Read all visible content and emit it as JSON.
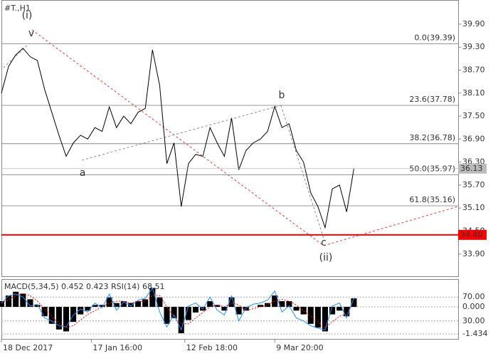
{
  "chart_data": [
    {
      "type": "line",
      "title": "#T.,H1",
      "x": [
        0,
        2,
        4,
        6,
        8,
        10,
        12,
        14,
        16,
        18,
        20,
        22,
        24,
        26,
        28,
        30,
        32,
        34,
        36,
        38,
        40,
        42,
        44,
        46,
        48,
        50,
        52,
        54,
        56,
        58,
        60,
        62,
        64,
        66,
        68,
        70,
        72,
        74,
        76,
        78,
        80,
        82,
        84,
        86,
        88,
        90,
        92,
        94,
        96,
        98
      ],
      "series": [
        {
          "color": "#000000",
          "values": [
            38.1,
            38.8,
            39.1,
            39.27,
            39.05,
            38.95,
            38.2,
            37.6,
            37.0,
            36.45,
            36.8,
            37.0,
            36.9,
            37.2,
            37.1,
            37.74,
            37.2,
            37.5,
            37.3,
            37.6,
            37.7,
            39.23,
            38.3,
            36.26,
            36.8,
            35.14,
            36.26,
            36.5,
            36.45,
            37.2,
            36.8,
            36.45,
            37.45,
            36.1,
            36.6,
            36.8,
            36.9,
            37.1,
            37.75,
            37.2,
            37.3,
            36.6,
            36.3,
            35.5,
            35.14,
            34.59,
            35.6,
            35.7,
            35.0,
            36.13
          ]
        }
      ],
      "xlim": [
        0,
        127
      ],
      "ylim": [
        33.32,
        40.53
      ],
      "xticks": [
        {
          "value": 0,
          "label": "18 Dec 2017"
        },
        {
          "value": 25,
          "label": "17 Jan 16:00"
        },
        {
          "value": 51,
          "label": "12 Feb 18:00"
        },
        {
          "value": 76,
          "label": "9 Mar 20:00"
        }
      ],
      "yticks": [
        {
          "value": 39.9,
          "label": "39.90"
        },
        {
          "value": 39.3,
          "label": "39.30"
        },
        {
          "value": 38.7,
          "label": "38.70"
        },
        {
          "value": 38.1,
          "label": "38.10"
        },
        {
          "value": 37.5,
          "label": "37.50"
        },
        {
          "value": 36.9,
          "label": "36.90"
        },
        {
          "value": 36.3,
          "label": "36.30"
        },
        {
          "value": 35.7,
          "label": "35.70"
        },
        {
          "value": 35.1,
          "label": "35.10"
        },
        {
          "value": 34.5,
          "label": "34.50"
        },
        {
          "value": 33.9,
          "label": "33.90"
        }
      ],
      "levels": [
        {
          "value": 39.39,
          "label": "0.0(39.39)"
        },
        {
          "value": 37.78,
          "label": "23.6(37.78)"
        },
        {
          "value": 36.78,
          "label": "38.2(36.78)"
        },
        {
          "value": 35.97,
          "label": "50.0(35.97)"
        },
        {
          "value": 35.16,
          "label": "61.8(35.16)"
        }
      ],
      "lines": [
        {
          "value": 36.13,
          "label": "36.13",
          "color": "#bbbbbb"
        },
        {
          "value": 34.4,
          "label": "34.40",
          "color": "#ff0000"
        }
      ],
      "wave_labels": [
        "(i)",
        "v",
        "a",
        "b",
        "c",
        "(ii)"
      ]
    },
    {
      "type": "bar",
      "title": "MACD(5,34,5) 0.452 0.423 RSI(14) 68.51",
      "x": [
        0,
        2,
        4,
        6,
        8,
        10,
        12,
        14,
        16,
        18,
        20,
        22,
        24,
        26,
        28,
        30,
        32,
        34,
        36,
        38,
        40,
        42,
        44,
        46,
        48,
        50,
        52,
        54,
        56,
        58,
        60,
        62,
        64,
        66,
        68,
        70,
        72,
        74,
        76,
        78,
        80,
        82,
        84,
        86,
        88,
        90,
        92,
        94,
        96,
        98
      ],
      "series": [
        {
          "color": "#000000",
          "values": [
            0.3,
            0.6,
            0.8,
            0.7,
            0.4,
            0.1,
            -0.5,
            -0.9,
            -1.2,
            -1.3,
            -0.8,
            -0.4,
            -0.2,
            0.1,
            0.1,
            0.5,
            0.2,
            0.3,
            0.2,
            0.3,
            0.4,
            1.0,
            0.5,
            -0.9,
            -0.6,
            -1.4,
            -0.7,
            -0.3,
            -0.2,
            0.3,
            0.1,
            -0.2,
            0.5,
            -0.4,
            -0.2,
            0.0,
            0.1,
            0.2,
            0.6,
            0.3,
            0.3,
            -0.2,
            -0.4,
            -0.9,
            -1.1,
            -1.3,
            -0.4,
            -0.2,
            -0.5,
            0.45
          ]
        },
        {
          "color": "#ff0000",
          "type": "line",
          "values": [
            0.2,
            0.4,
            0.6,
            0.7,
            0.6,
            0.3,
            -0.1,
            -0.5,
            -0.9,
            -1.1,
            -1.0,
            -0.7,
            -0.4,
            -0.2,
            0.0,
            0.2,
            0.3,
            0.3,
            0.2,
            0.3,
            0.3,
            0.6,
            0.6,
            0.0,
            -0.5,
            -0.9,
            -0.9,
            -0.6,
            -0.3,
            0.0,
            0.1,
            0.0,
            0.2,
            0.1,
            -0.2,
            -0.1,
            0.0,
            0.1,
            0.3,
            0.4,
            0.3,
            0.1,
            -0.2,
            -0.5,
            -0.8,
            -1.1,
            -0.8,
            -0.5,
            -0.4,
            0.42
          ]
        },
        {
          "color": "#1e90ff",
          "type": "line",
          "axis": "y2",
          "values": [
            60,
            72,
            75,
            70,
            55,
            58,
            35,
            30,
            22,
            20,
            40,
            50,
            45,
            60,
            52,
            75,
            48,
            62,
            55,
            65,
            68,
            85,
            45,
            20,
            40,
            15,
            55,
            60,
            50,
            70,
            48,
            40,
            72,
            30,
            52,
            58,
            60,
            65,
            80,
            45,
            55,
            35,
            30,
            22,
            18,
            15,
            55,
            60,
            35,
            68.51
          ]
        }
      ],
      "xlim": [
        0,
        127
      ],
      "ylim": [
        -1.7,
        1.47
      ],
      "y2lim": [
        0,
        100
      ],
      "yticks": [
        {
          "value": 0,
          "label": "0.000"
        },
        {
          "value": -1.434,
          "label": "-1.434"
        }
      ],
      "y2ticks": [
        {
          "value": 70,
          "label": "70.00"
        },
        {
          "value": 30,
          "label": "30.00"
        }
      ]
    }
  ]
}
